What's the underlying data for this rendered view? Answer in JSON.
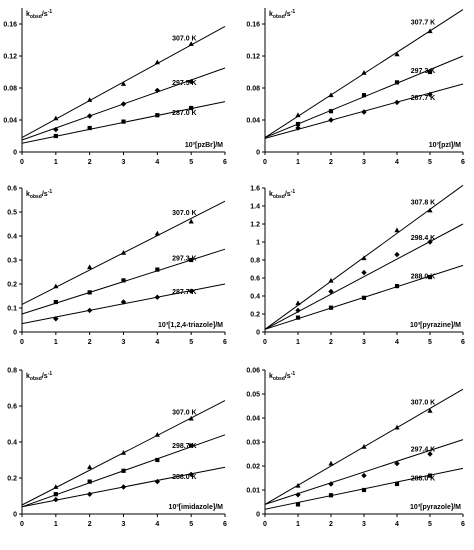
{
  "chart_data": [
    {
      "type": "scatter",
      "ylabel": "kobsd/s-1",
      "ylabel_parts": {
        "base": "k",
        "sub": "obsd",
        "unit": "/s",
        "exp": "-1"
      },
      "xlabel": "10³[pzBr]/M",
      "xlim": [
        0,
        6
      ],
      "ylim": [
        0,
        0.18
      ],
      "xticks": [
        0,
        1,
        2,
        3,
        4,
        5,
        6
      ],
      "yticks": [
        0,
        0.04,
        0.08,
        0.12,
        0.16
      ],
      "ytick_labels": [
        "0",
        "0.04",
        "0.08",
        "0.12",
        "0.16"
      ],
      "series": [
        {
          "name": "307.0 K",
          "marker": "triangle",
          "x": [
            1,
            2,
            3,
            4,
            5
          ],
          "y": [
            0.042,
            0.065,
            0.085,
            0.112,
            0.135
          ],
          "fit": [
            [
              0,
              0.018
            ],
            [
              6,
              0.157
            ]
          ]
        },
        {
          "name": "297.5 K",
          "marker": "diamond",
          "x": [
            1,
            2,
            3,
            4,
            5
          ],
          "y": [
            0.028,
            0.045,
            0.06,
            0.077,
            0.088
          ],
          "fit": [
            [
              0,
              0.015
            ],
            [
              6,
              0.105
            ]
          ]
        },
        {
          "name": "287.0 K",
          "marker": "square",
          "x": [
            1,
            2,
            3,
            4,
            5
          ],
          "y": [
            0.02,
            0.03,
            0.038,
            0.046,
            0.055
          ],
          "fit": [
            [
              0,
              0.011
            ],
            [
              6,
              0.063
            ]
          ]
        }
      ]
    },
    {
      "type": "scatter",
      "ylabel": "kobsd/s-1",
      "ylabel_parts": {
        "base": "k",
        "sub": "obsd",
        "unit": "/s",
        "exp": "-1"
      },
      "xlabel": "10³[pzI]/M",
      "xlim": [
        0,
        6
      ],
      "ylim": [
        0,
        0.18
      ],
      "xticks": [
        0,
        1,
        2,
        3,
        4,
        5,
        6
      ],
      "yticks": [
        0,
        0.04,
        0.08,
        0.12,
        0.16
      ],
      "ytick_labels": [
        "0",
        "0.04",
        "0.08",
        "0.12",
        "0.16"
      ],
      "series": [
        {
          "name": "307.7 K",
          "marker": "triangle",
          "x": [
            1,
            2,
            3,
            4,
            5
          ],
          "y": [
            0.046,
            0.071,
            0.099,
            0.122,
            0.151
          ],
          "fit": [
            [
              0,
              0.018
            ],
            [
              6,
              0.178
            ]
          ]
        },
        {
          "name": "297.3 K",
          "marker": "square",
          "x": [
            1,
            2,
            3,
            4,
            5
          ],
          "y": [
            0.035,
            0.051,
            0.071,
            0.087,
            0.1
          ],
          "fit": [
            [
              0,
              0.018
            ],
            [
              6,
              0.12
            ]
          ]
        },
        {
          "name": "287.7 K",
          "marker": "diamond",
          "x": [
            1,
            2,
            3,
            4,
            5
          ],
          "y": [
            0.03,
            0.04,
            0.05,
            0.062,
            0.072
          ],
          "fit": [
            [
              0,
              0.017
            ],
            [
              6,
              0.085
            ]
          ]
        }
      ]
    },
    {
      "type": "scatter",
      "ylabel": "kobsd/s-1",
      "ylabel_parts": {
        "base": "k",
        "sub": "obsd",
        "unit": "/s",
        "exp": "-1"
      },
      "xlabel": "10³[1,2,4-triazole]/M",
      "xlim": [
        0,
        6
      ],
      "ylim": [
        0,
        0.6
      ],
      "xticks": [
        0,
        1,
        2,
        3,
        4,
        5,
        6
      ],
      "yticks": [
        0,
        0.1,
        0.2,
        0.3,
        0.4,
        0.5,
        0.6
      ],
      "ytick_labels": [
        "0",
        "0.1",
        "0.2",
        "0.3",
        "0.4",
        "0.5",
        "0.6"
      ],
      "series": [
        {
          "name": "307.0 K",
          "marker": "triangle",
          "x": [
            1,
            2,
            3,
            4,
            5
          ],
          "y": [
            0.19,
            0.27,
            0.33,
            0.41,
            0.46
          ],
          "fit": [
            [
              0,
              0.115
            ],
            [
              6,
              0.545
            ]
          ]
        },
        {
          "name": "297.3 K",
          "marker": "square",
          "x": [
            1,
            2,
            3,
            4,
            5
          ],
          "y": [
            0.125,
            0.165,
            0.215,
            0.26,
            0.3
          ],
          "fit": [
            [
              0,
              0.075
            ],
            [
              6,
              0.345
            ]
          ]
        },
        {
          "name": "287.7 K",
          "marker": "diamond",
          "x": [
            1,
            2,
            3,
            4,
            5
          ],
          "y": [
            0.055,
            0.09,
            0.125,
            0.145,
            0.17
          ],
          "fit": [
            [
              0,
              0.035
            ],
            [
              6,
              0.2
            ]
          ]
        }
      ]
    },
    {
      "type": "scatter",
      "ylabel": "kobsd/s-1",
      "ylabel_parts": {
        "base": "k",
        "sub": "obsd",
        "unit": "/s",
        "exp": "-1"
      },
      "xlabel": "10³[pyrazine]/M",
      "xlim": [
        0,
        6
      ],
      "ylim": [
        0,
        1.6
      ],
      "xticks": [
        0,
        1,
        2,
        3,
        4,
        5,
        6
      ],
      "yticks": [
        0,
        0.2,
        0.4,
        0.6,
        0.8,
        1,
        1.2,
        1.4,
        1.6
      ],
      "ytick_labels": [
        "0",
        "0.2",
        "0.4",
        "0.6",
        "0.8",
        "1",
        "1.2",
        "1.4",
        "1.6"
      ],
      "series": [
        {
          "name": "307.8 K",
          "marker": "triangle",
          "x": [
            1,
            2,
            3,
            4,
            5
          ],
          "y": [
            0.32,
            0.57,
            0.82,
            1.13,
            1.35
          ],
          "fit": [
            [
              0,
              0.03
            ],
            [
              6,
              1.63
            ]
          ]
        },
        {
          "name": "298.4 K",
          "marker": "diamond",
          "x": [
            1,
            2,
            3,
            4,
            5
          ],
          "y": [
            0.24,
            0.45,
            0.66,
            0.86,
            1.0
          ],
          "fit": [
            [
              0,
              0.03
            ],
            [
              6,
              1.2
            ]
          ]
        },
        {
          "name": "288.0 K",
          "marker": "square",
          "x": [
            1,
            2,
            3,
            4,
            5
          ],
          "y": [
            0.16,
            0.27,
            0.38,
            0.51,
            0.61
          ],
          "fit": [
            [
              0,
              0.03
            ],
            [
              6,
              0.74
            ]
          ]
        }
      ]
    },
    {
      "type": "scatter",
      "ylabel": "kobsd/s-1",
      "ylabel_parts": {
        "base": "k",
        "sub": "obsd",
        "unit": "/s",
        "exp": "-1"
      },
      "xlabel": "10³[imidazole]/M",
      "xlim": [
        0,
        6
      ],
      "ylim": [
        0,
        0.8
      ],
      "xticks": [
        0,
        1,
        2,
        3,
        4,
        5,
        6
      ],
      "yticks": [
        0,
        0.2,
        0.4,
        0.6,
        0.8
      ],
      "ytick_labels": [
        "0",
        "0.2",
        "0.4",
        "0.6",
        "0.8"
      ],
      "series": [
        {
          "name": "307.0 K",
          "marker": "triangle",
          "x": [
            1,
            2,
            3,
            4,
            5
          ],
          "y": [
            0.15,
            0.26,
            0.34,
            0.44,
            0.53
          ],
          "fit": [
            [
              0,
              0.05
            ],
            [
              6,
              0.63
            ]
          ]
        },
        {
          "name": "298.7 K",
          "marker": "square",
          "x": [
            1,
            2,
            3,
            4,
            5
          ],
          "y": [
            0.11,
            0.18,
            0.24,
            0.3,
            0.38
          ],
          "fit": [
            [
              0,
              0.04
            ],
            [
              6,
              0.44
            ]
          ]
        },
        {
          "name": "288.0 K",
          "marker": "diamond",
          "x": [
            1,
            2,
            3,
            4,
            5
          ],
          "y": [
            0.08,
            0.11,
            0.15,
            0.18,
            0.22
          ],
          "fit": [
            [
              0,
              0.04
            ],
            [
              6,
              0.26
            ]
          ]
        }
      ]
    },
    {
      "type": "scatter",
      "ylabel": "kobsd/s-1",
      "ylabel_parts": {
        "base": "k",
        "sub": "obsd",
        "unit": "/s",
        "exp": "-1"
      },
      "xlabel": "10³[pyrazole]/M",
      "xlim": [
        0,
        6
      ],
      "ylim": [
        0,
        0.06
      ],
      "xticks": [
        0,
        1,
        2,
        3,
        4,
        5,
        6
      ],
      "yticks": [
        0,
        0.01,
        0.02,
        0.03,
        0.04,
        0.05,
        0.06
      ],
      "ytick_labels": [
        "0",
        "0.01",
        "0.02",
        "0.03",
        "0.04",
        "0.05",
        "0.06"
      ],
      "series": [
        {
          "name": "307.0 K",
          "marker": "triangle",
          "x": [
            1,
            2,
            3,
            4,
            5
          ],
          "y": [
            0.0118,
            0.021,
            0.028,
            0.036,
            0.043
          ],
          "fit": [
            [
              0,
              0.004
            ],
            [
              6,
              0.052
            ]
          ]
        },
        {
          "name": "297.4 K",
          "marker": "diamond",
          "x": [
            1,
            2,
            3,
            4,
            5
          ],
          "y": [
            0.008,
            0.0125,
            0.016,
            0.021,
            0.025
          ],
          "fit": [
            [
              0,
              0.004
            ],
            [
              6,
              0.031
            ]
          ]
        },
        {
          "name": "288.0 K",
          "marker": "square",
          "x": [
            1,
            2,
            3,
            4,
            5
          ],
          "y": [
            0.004,
            0.0078,
            0.01,
            0.0125,
            0.016
          ],
          "fit": [
            [
              0,
              0.002
            ],
            [
              6,
              0.019
            ]
          ]
        }
      ]
    }
  ]
}
